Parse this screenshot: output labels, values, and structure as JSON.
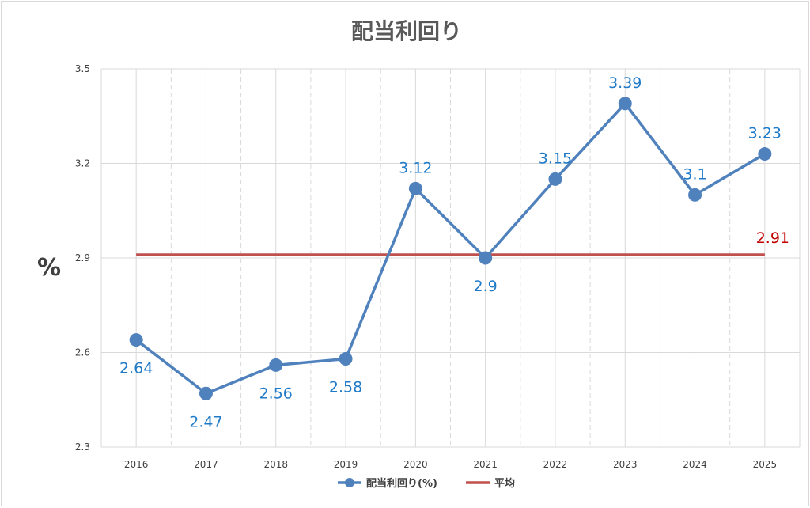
{
  "chart_data": {
    "type": "line",
    "title": "配当利回り",
    "ylabel": "%",
    "categories": [
      "2016",
      "2017",
      "2018",
      "2019",
      "2020",
      "2021",
      "2022",
      "2023",
      "2024",
      "2025"
    ],
    "series": [
      {
        "name": "配当利回り(%)",
        "values": [
          2.64,
          2.47,
          2.56,
          2.58,
          3.12,
          2.9,
          3.15,
          3.39,
          3.1,
          3.23
        ],
        "color": "#4f81bd"
      },
      {
        "name": "平均",
        "values": [
          2.91,
          2.91,
          2.91,
          2.91,
          2.91,
          2.91,
          2.91,
          2.91,
          2.91,
          2.91
        ],
        "color": "#c0504d"
      }
    ],
    "data_labels": [
      "2.64",
      "2.47",
      "2.56",
      "2.58",
      "3.12",
      "2.9",
      "3.15",
      "3.39",
      "3.1",
      "3.23"
    ],
    "average_label": "2.91",
    "ylim": [
      2.3,
      3.5
    ],
    "yticks": [
      "2.3",
      "2.6",
      "2.9",
      "3.2",
      "3.5"
    ],
    "grid": true,
    "legend": "bottom",
    "label_color": "#1f7ac8",
    "average_label_color": "#c00000"
  }
}
